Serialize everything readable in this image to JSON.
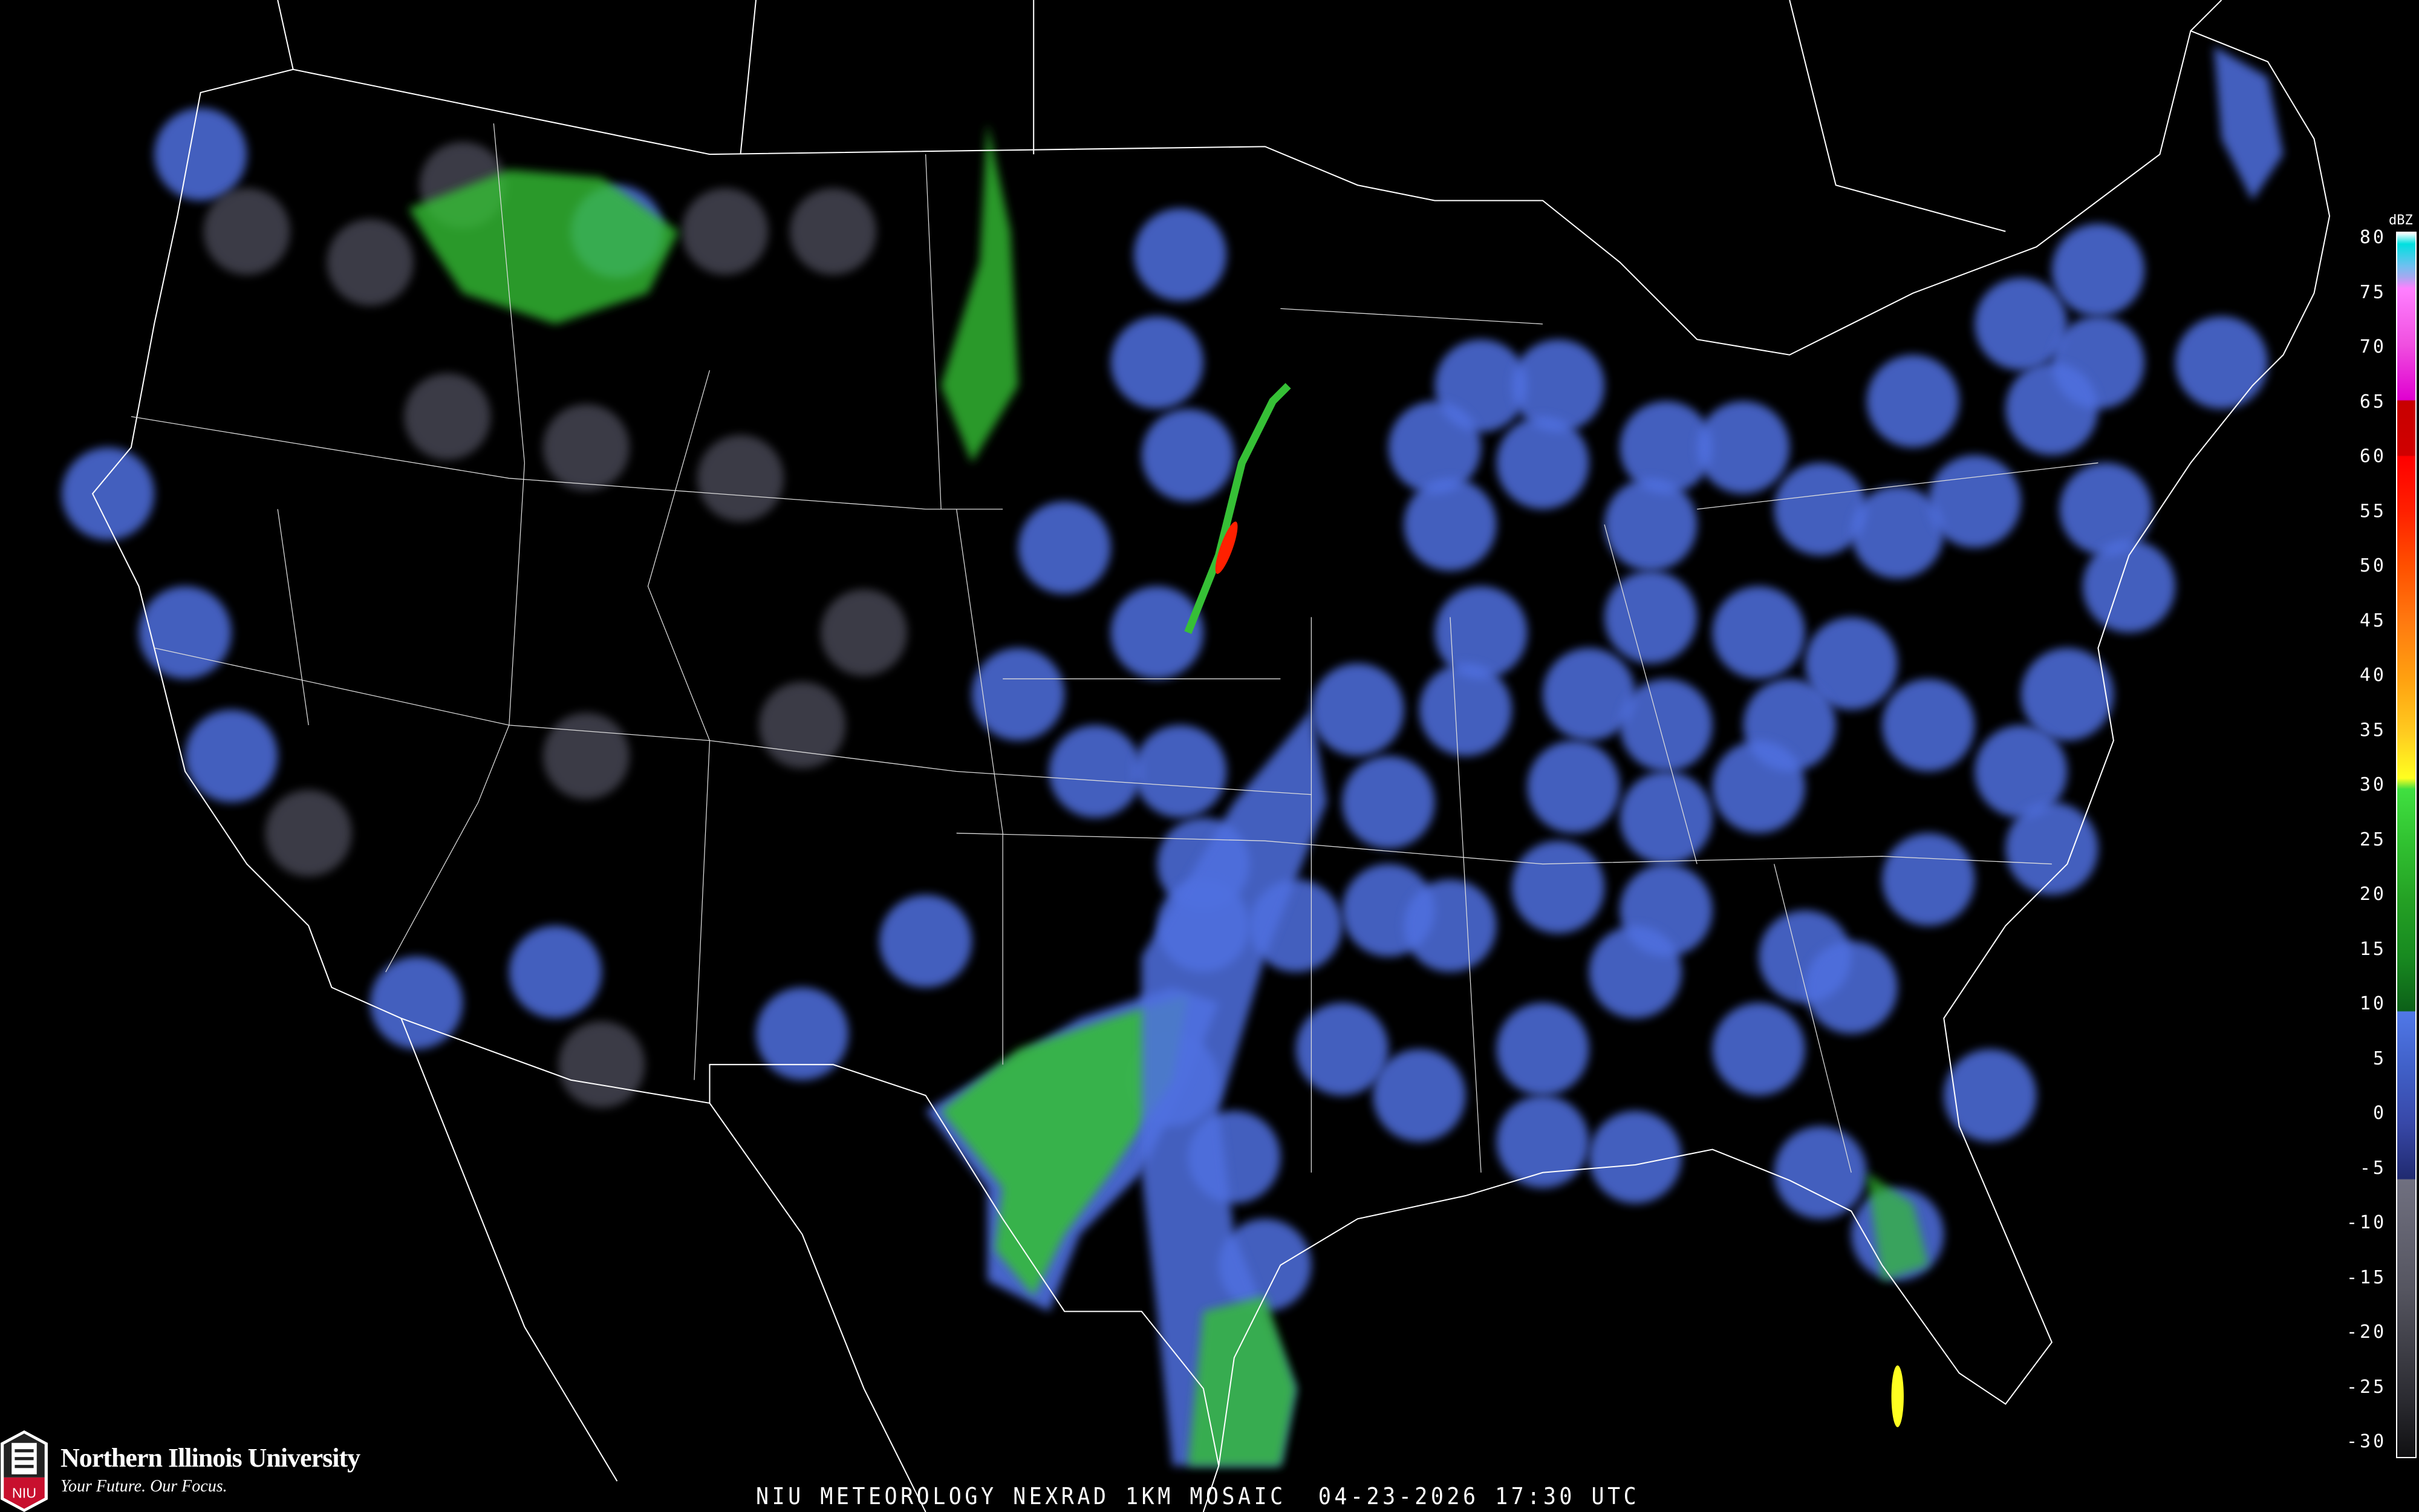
{
  "title": "NIU METEOROLOGY NEXRAD 1KM MOSAIC  04-23-2026 17:30 UTC",
  "branding": {
    "university": "Northern Illinois University",
    "tagline": "Your Future. Our Focus.",
    "logo_text": "NIU",
    "logo_color": "#c8102e"
  },
  "legend": {
    "unit": "dBZ",
    "labels": [
      "80",
      "75",
      "70",
      "65",
      "60",
      "55",
      "50",
      "45",
      "40",
      "35",
      "30",
      "25",
      "20",
      "15",
      "10",
      "5",
      "0",
      "-5",
      "-10",
      "-15",
      "-20",
      "-25",
      "-30"
    ],
    "color_stops": [
      {
        "dbz": 80,
        "color": "#ffffff"
      },
      {
        "dbz": 79,
        "color": "#00e0e0"
      },
      {
        "dbz": 77,
        "color": "#70c0f0"
      },
      {
        "dbz": 76,
        "color": "#a8a8f0"
      },
      {
        "dbz": 75,
        "color": "#ff80ff"
      },
      {
        "dbz": 70,
        "color": "#f050e0"
      },
      {
        "dbz": 65,
        "color": "#e000d0"
      },
      {
        "dbz": 64.9,
        "color": "#c80000"
      },
      {
        "dbz": 60,
        "color": "#d00000"
      },
      {
        "dbz": 59.9,
        "color": "#ff0000"
      },
      {
        "dbz": 55,
        "color": "#ff2000"
      },
      {
        "dbz": 50,
        "color": "#ff5000"
      },
      {
        "dbz": 45,
        "color": "#ff7a10"
      },
      {
        "dbz": 40,
        "color": "#ffa010"
      },
      {
        "dbz": 35,
        "color": "#ffcc20"
      },
      {
        "dbz": 31,
        "color": "#ffff20"
      },
      {
        "dbz": 30,
        "color": "#40e040"
      },
      {
        "dbz": 25,
        "color": "#30c030"
      },
      {
        "dbz": 20,
        "color": "#24a024"
      },
      {
        "dbz": 15,
        "color": "#188a20"
      },
      {
        "dbz": 10.1,
        "color": "#0c6018"
      },
      {
        "dbz": 10,
        "color": "#5078e8"
      },
      {
        "dbz": 5,
        "color": "#4060c8"
      },
      {
        "dbz": 0,
        "color": "#3848a8"
      },
      {
        "dbz": -5,
        "color": "#202a70"
      },
      {
        "dbz": -5.1,
        "color": "#707080"
      },
      {
        "dbz": -15,
        "color": "#555560"
      },
      {
        "dbz": -25,
        "color": "#2a2a30"
      },
      {
        "dbz": -30,
        "color": "#101012"
      }
    ]
  },
  "echo_colors": {
    "light": "#4f6fe0",
    "moderate": "#36c036",
    "heavy": "#ff2000",
    "core": "#ffff20",
    "clutter": "#6c6c80"
  }
}
